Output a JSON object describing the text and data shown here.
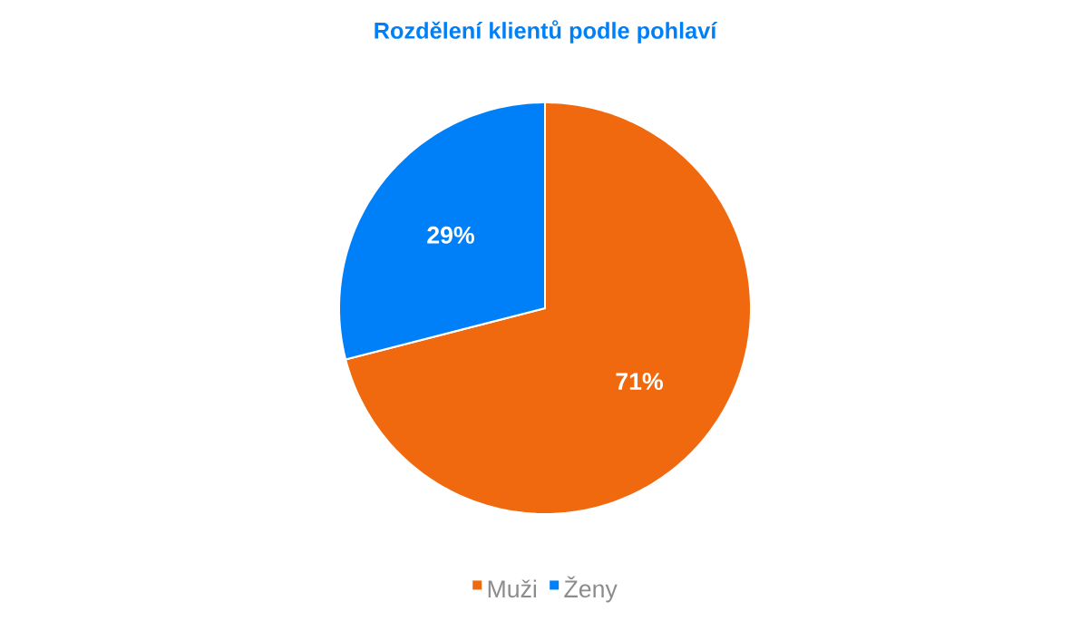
{
  "chart_data": {
    "type": "pie",
    "title": "Rozdělení klientů podle pohlaví",
    "categories": [
      "Muži",
      "Ženy"
    ],
    "values": [
      71,
      29
    ],
    "colors": [
      "#f0690f",
      "#0080f8"
    ],
    "value_labels": [
      "71%",
      "29%"
    ],
    "legend": "bottom"
  }
}
